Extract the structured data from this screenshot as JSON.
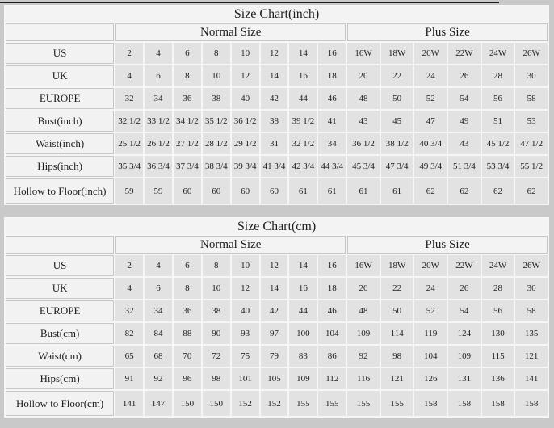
{
  "page": {
    "background_color": "#c9c9c9",
    "table_background_color": "#f6f6f6",
    "label_cell_color": "#f2f2f2",
    "data_cell_color": "#e2e2e2",
    "border_color": "#c6c6c6",
    "text_color": "#1e1e1e"
  },
  "tables": [
    {
      "title": "Size Chart(inch)",
      "groups": [
        "Normal Size",
        "Plus Size"
      ],
      "group_spans": [
        8,
        6
      ],
      "rows": [
        {
          "label": "US",
          "values": [
            "2",
            "4",
            "6",
            "8",
            "10",
            "12",
            "14",
            "16",
            "16W",
            "18W",
            "20W",
            "22W",
            "24W",
            "26W"
          ]
        },
        {
          "label": "UK",
          "values": [
            "4",
            "6",
            "8",
            "10",
            "12",
            "14",
            "16",
            "18",
            "20",
            "22",
            "24",
            "26",
            "28",
            "30"
          ]
        },
        {
          "label": "EUROPE",
          "values": [
            "32",
            "34",
            "36",
            "38",
            "40",
            "42",
            "44",
            "46",
            "48",
            "50",
            "52",
            "54",
            "56",
            "58"
          ]
        },
        {
          "label": "Bust(inch)",
          "values": [
            "32 1/2",
            "33 1/2",
            "34 1/2",
            "35 1/2",
            "36 1/2",
            "38",
            "39 1/2",
            "41",
            "43",
            "45",
            "47",
            "49",
            "51",
            "53"
          ]
        },
        {
          "label": "Waist(inch)",
          "values": [
            "25 1/2",
            "26 1/2",
            "27 1/2",
            "28 1/2",
            "29 1/2",
            "31",
            "32 1/2",
            "34",
            "36 1/2",
            "38 1/2",
            "40 3/4",
            "43",
            "45 1/2",
            "47 1/2"
          ]
        },
        {
          "label": "Hips(inch)",
          "values": [
            "35 3/4",
            "36 3/4",
            "37 3/4",
            "38 3/4",
            "39 3/4",
            "41 3/4",
            "42 3/4",
            "44 3/4",
            "45 3/4",
            "47 3/4",
            "49 3/4",
            "51 3/4",
            "53 3/4",
            "55 1/2"
          ]
        },
        {
          "label": "Hollow to Floor(inch)",
          "values": [
            "59",
            "59",
            "60",
            "60",
            "60",
            "60",
            "61",
            "61",
            "61",
            "61",
            "62",
            "62",
            "62",
            "62"
          ]
        }
      ]
    },
    {
      "title": "Size Chart(cm)",
      "groups": [
        "Normal Size",
        "Plus Size"
      ],
      "group_spans": [
        8,
        6
      ],
      "rows": [
        {
          "label": "US",
          "values": [
            "2",
            "4",
            "6",
            "8",
            "10",
            "12",
            "14",
            "16",
            "16W",
            "18W",
            "20W",
            "22W",
            "24W",
            "26W"
          ]
        },
        {
          "label": "UK",
          "values": [
            "4",
            "6",
            "8",
            "10",
            "12",
            "14",
            "16",
            "18",
            "20",
            "22",
            "24",
            "26",
            "28",
            "30"
          ]
        },
        {
          "label": "EUROPE",
          "values": [
            "32",
            "34",
            "36",
            "38",
            "40",
            "42",
            "44",
            "46",
            "48",
            "50",
            "52",
            "54",
            "56",
            "58"
          ]
        },
        {
          "label": "Bust(cm)",
          "values": [
            "82",
            "84",
            "88",
            "90",
            "93",
            "97",
            "100",
            "104",
            "109",
            "114",
            "119",
            "124",
            "130",
            "135"
          ]
        },
        {
          "label": "Waist(cm)",
          "values": [
            "65",
            "68",
            "70",
            "72",
            "75",
            "79",
            "83",
            "86",
            "92",
            "98",
            "104",
            "109",
            "115",
            "121"
          ]
        },
        {
          "label": "Hips(cm)",
          "values": [
            "91",
            "92",
            "96",
            "98",
            "101",
            "105",
            "109",
            "112",
            "116",
            "121",
            "126",
            "131",
            "136",
            "141"
          ]
        },
        {
          "label": "Hollow to Floor(cm)",
          "values": [
            "141",
            "147",
            "150",
            "150",
            "152",
            "152",
            "155",
            "155",
            "155",
            "155",
            "158",
            "158",
            "158",
            "158"
          ]
        }
      ]
    }
  ]
}
